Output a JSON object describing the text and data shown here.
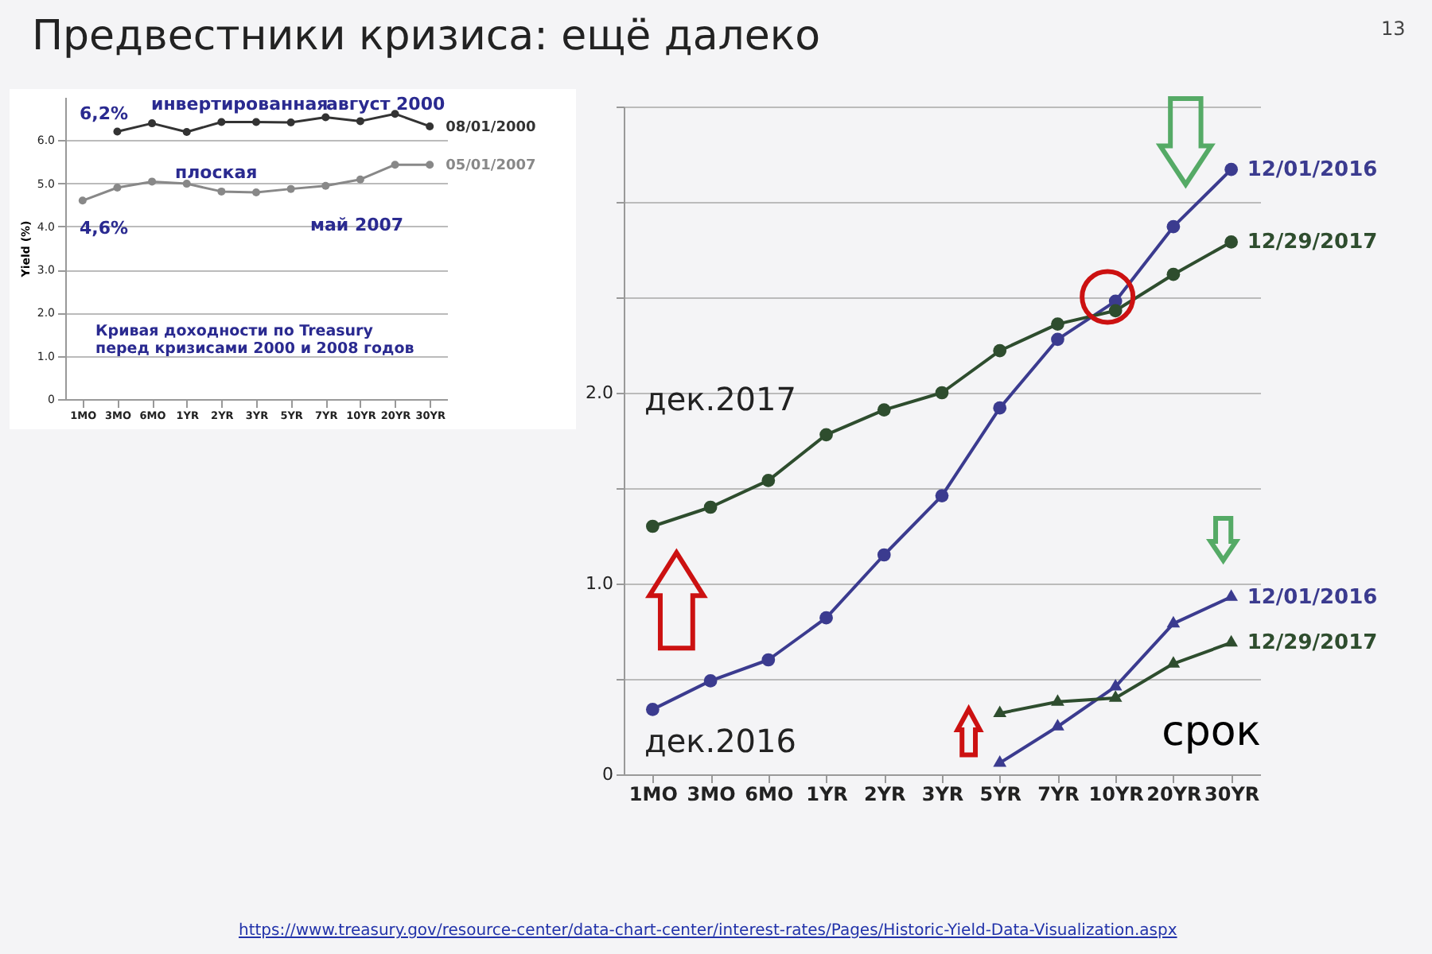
{
  "chart_data": [
    {
      "type": "line",
      "title": "Предвестники кризиса: ещё далеко",
      "ylabel": "Yield (%)",
      "categories": [
        "1MO",
        "3MO",
        "6MO",
        "1YR",
        "2YR",
        "3YR",
        "5YR",
        "7YR",
        "10YR",
        "20YR",
        "30YR"
      ],
      "series": [
        {
          "name": "08/01/2000",
          "color": "#333333",
          "values": [
            null,
            6.2,
            6.39,
            6.19,
            6.42,
            6.42,
            6.41,
            6.53,
            6.44,
            6.61,
            6.32
          ]
        },
        {
          "name": "05/01/2007",
          "color": "#888888",
          "values": [
            4.6,
            4.9,
            5.04,
            4.99,
            4.81,
            4.79,
            4.87,
            4.94,
            5.09,
            5.43,
            5.43
          ]
        }
      ],
      "ylim": [
        0,
        7
      ],
      "yticks": [
        0,
        {
          "value": 1,
          "label": "1.0"
        },
        {
          "value": 2,
          "label": "2.0"
        },
        {
          "value": 3,
          "label": "3.0"
        },
        {
          "value": 4,
          "label": "4.0"
        },
        {
          "value": 5,
          "label": "5.0"
        },
        {
          "value": 6,
          "label": "6.0"
        }
      ],
      "grid": "y",
      "marker": "circle",
      "legend": false,
      "annotations": [
        "инвертированная",
        "август 2000",
        "плоская",
        "май 2007",
        "6,2%",
        "4,6%",
        "Кривая доходности по Treasury\nперед кризисами 2000 и 2008 годов",
        "13"
      ]
    },
    {
      "type": "line",
      "xlabel": "срок",
      "categories": [
        "1MO",
        "3MO",
        "6MO",
        "1YR",
        "2YR",
        "3YR",
        "5YR",
        "7YR",
        "10YR",
        "20YR",
        "30YR"
      ],
      "series": [
        {
          "name": "12/01/2016",
          "color": "#3b3b8f",
          "marker": "circle",
          "values": [
            0.34,
            0.49,
            0.6,
            0.82,
            1.15,
            1.46,
            1.92,
            2.28,
            2.48,
            2.87,
            3.17
          ]
        },
        {
          "name": "12/29/2017",
          "color": "#2e4d2e",
          "marker": "circle",
          "values": [
            1.3,
            1.4,
            1.54,
            1.78,
            1.91,
            2.0,
            2.22,
            2.36,
            2.43,
            2.62,
            2.79
          ]
        },
        {
          "name": "12/01/2016",
          "color": "#3b3b8f",
          "marker": "triangle",
          "values": [
            null,
            null,
            null,
            null,
            null,
            null,
            0.06,
            0.25,
            0.46,
            0.79,
            0.93
          ]
        },
        {
          "name": "12/29/2017",
          "color": "#2e4d2e",
          "marker": "triangle",
          "values": [
            null,
            null,
            null,
            null,
            null,
            null,
            0.32,
            0.38,
            0.4,
            0.58,
            0.69
          ]
        }
      ],
      "ylim": [
        0,
        3.5
      ],
      "yticks": [
        {
          "value": 0,
          "label": "0"
        },
        {
          "value": 0.5,
          "label": null
        },
        {
          "value": 1,
          "label": "1.0"
        },
        {
          "value": 1.5,
          "label": null
        },
        {
          "value": 2,
          "label": "2.0"
        },
        {
          "value": 2.5,
          "label": null
        },
        {
          "value": 3,
          "label": null
        },
        {
          "value": 3.5,
          "label": null
        }
      ],
      "grid": "y",
      "legend": false,
      "annotations": [
        "дек.2017",
        "дек.2016",
        "https://www.treasury.gov/resource-center/data-chart-center/interest-rates/Pages/Historic-Yield-Data-Visualization.aspx"
      ]
    }
  ]
}
